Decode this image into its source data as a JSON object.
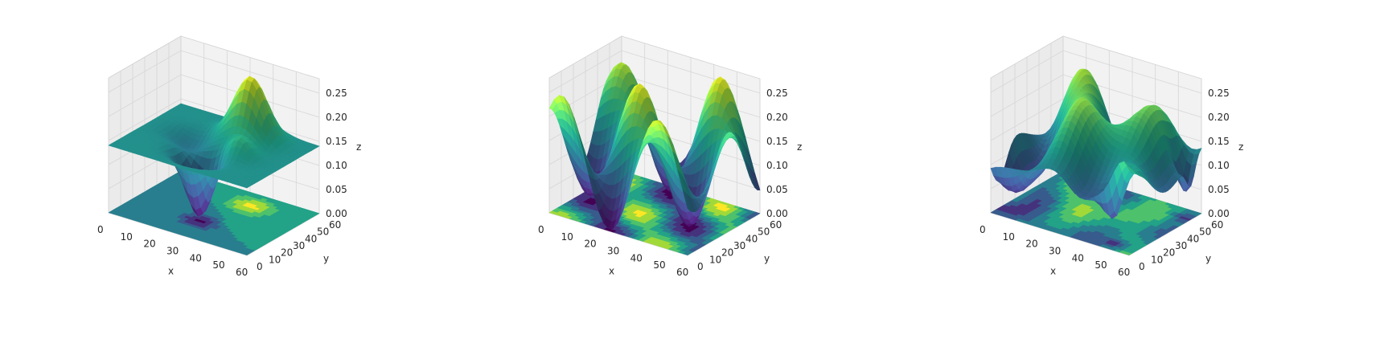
{
  "colormap": "viridis",
  "colors": {
    "pane": "#f2f2f2",
    "grid": "#d6d6d6",
    "text": "#262626"
  },
  "chart_data": [
    {
      "type": "surface3d",
      "title": "",
      "xlabel": "x",
      "ylabel": "y",
      "zlabel": "z",
      "xticks": [
        "0",
        "10",
        "20",
        "30",
        "40",
        "50",
        "60"
      ],
      "yticks": [
        "0",
        "10",
        "20",
        "30",
        "40",
        "50",
        "60"
      ],
      "zticks": [
        "0.00",
        "0.05",
        "0.10",
        "0.15",
        "0.20",
        "0.25"
      ],
      "xlim": [
        0,
        60
      ],
      "ylim": [
        0,
        60
      ],
      "zlim": [
        0,
        0.28
      ],
      "surface": "smooth single peak with a deep trough at near-flat baseline",
      "projected_contour": "contour map on z = 0 floor",
      "grid": true
    },
    {
      "type": "surface3d",
      "title": "",
      "xlabel": "x",
      "ylabel": "y",
      "zlabel": "z",
      "xticks": [
        "0",
        "10",
        "20",
        "30",
        "40",
        "50",
        "60"
      ],
      "yticks": [
        "0",
        "10",
        "20",
        "30",
        "40",
        "50",
        "60"
      ],
      "zticks": [
        "0.00",
        "0.05",
        "0.10",
        "0.15",
        "0.20",
        "0.25"
      ],
      "xlim": [
        0,
        60
      ],
      "ylim": [
        0,
        60
      ],
      "zlim": [
        0,
        0.28
      ],
      "surface": "periodic ridges and deep valleys",
      "projected_contour": "contour map on z = 0 floor",
      "grid": true
    },
    {
      "type": "surface3d",
      "title": "",
      "xlabel": "x",
      "ylabel": "y",
      "zlabel": "z",
      "xticks": [
        "0",
        "10",
        "20",
        "30",
        "40",
        "50",
        "60"
      ],
      "yticks": [
        "0",
        "10",
        "20",
        "30",
        "40",
        "50",
        "60"
      ],
      "zticks": [
        "0.00",
        "0.05",
        "0.10",
        "0.15",
        "0.20",
        "0.25"
      ],
      "xlim": [
        0,
        60
      ],
      "ylim": [
        0,
        60
      ],
      "zlim": [
        0,
        0.28
      ],
      "surface": "irregular multi-peak plateau with deep pits",
      "projected_contour": "contour map on z = 0 floor",
      "grid": true
    }
  ]
}
